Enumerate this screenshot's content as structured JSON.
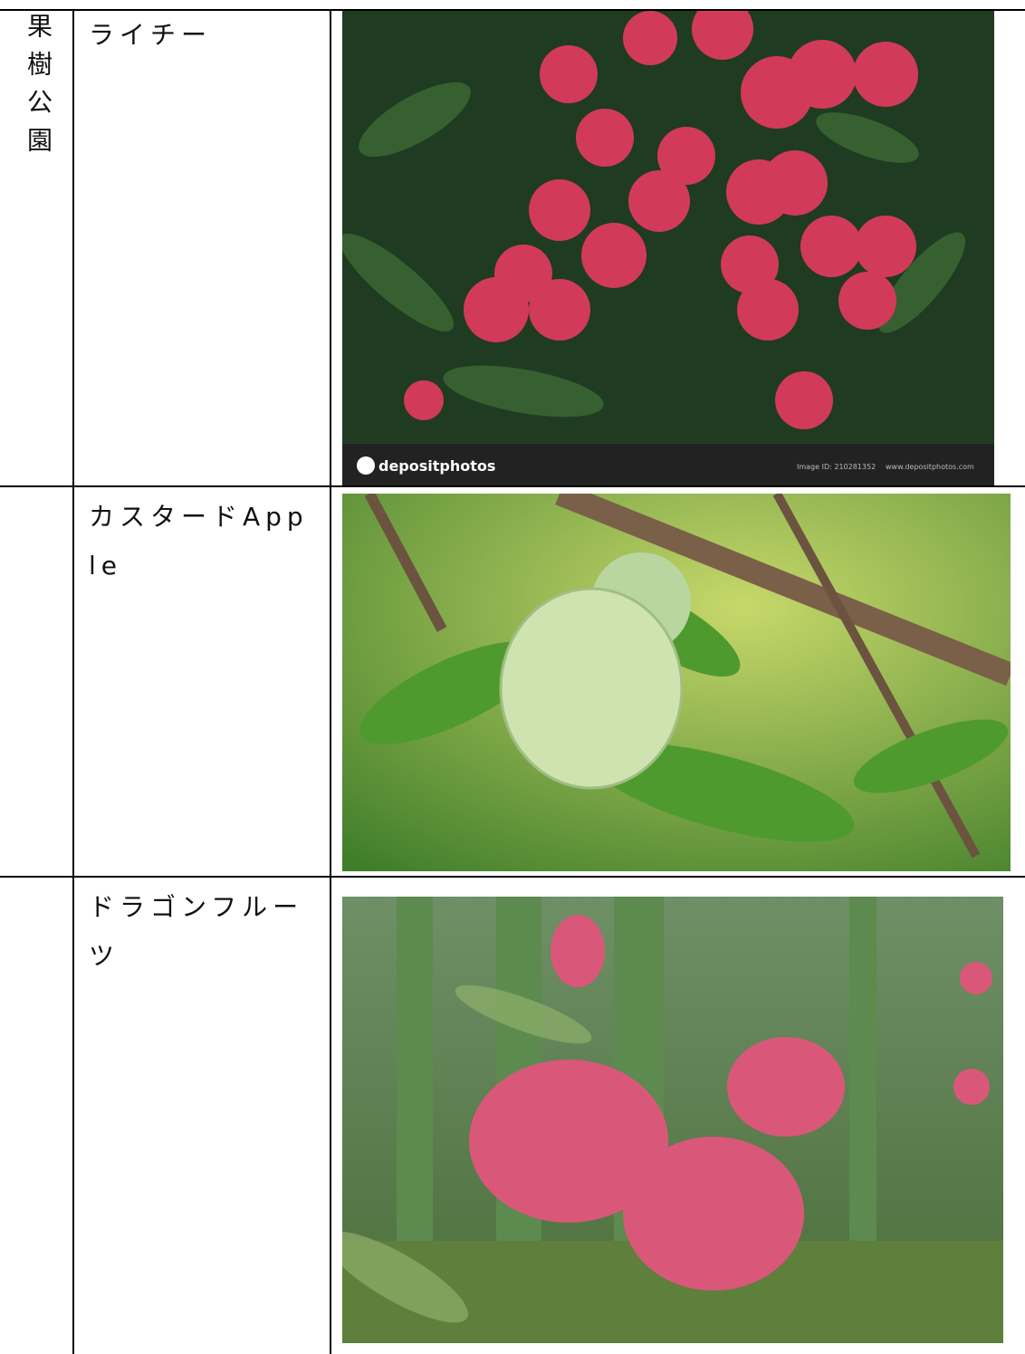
{
  "table": {
    "side_label": "果樹公園",
    "rows": [
      {
        "name": "ライチー",
        "image": {
          "brand": "depositphotos",
          "image_id": "Image ID: 210281352",
          "url": "www.depositphotos.com"
        }
      },
      {
        "name": "カスタードApple"
      },
      {
        "name": "ドラゴンフルーツ"
      }
    ]
  }
}
